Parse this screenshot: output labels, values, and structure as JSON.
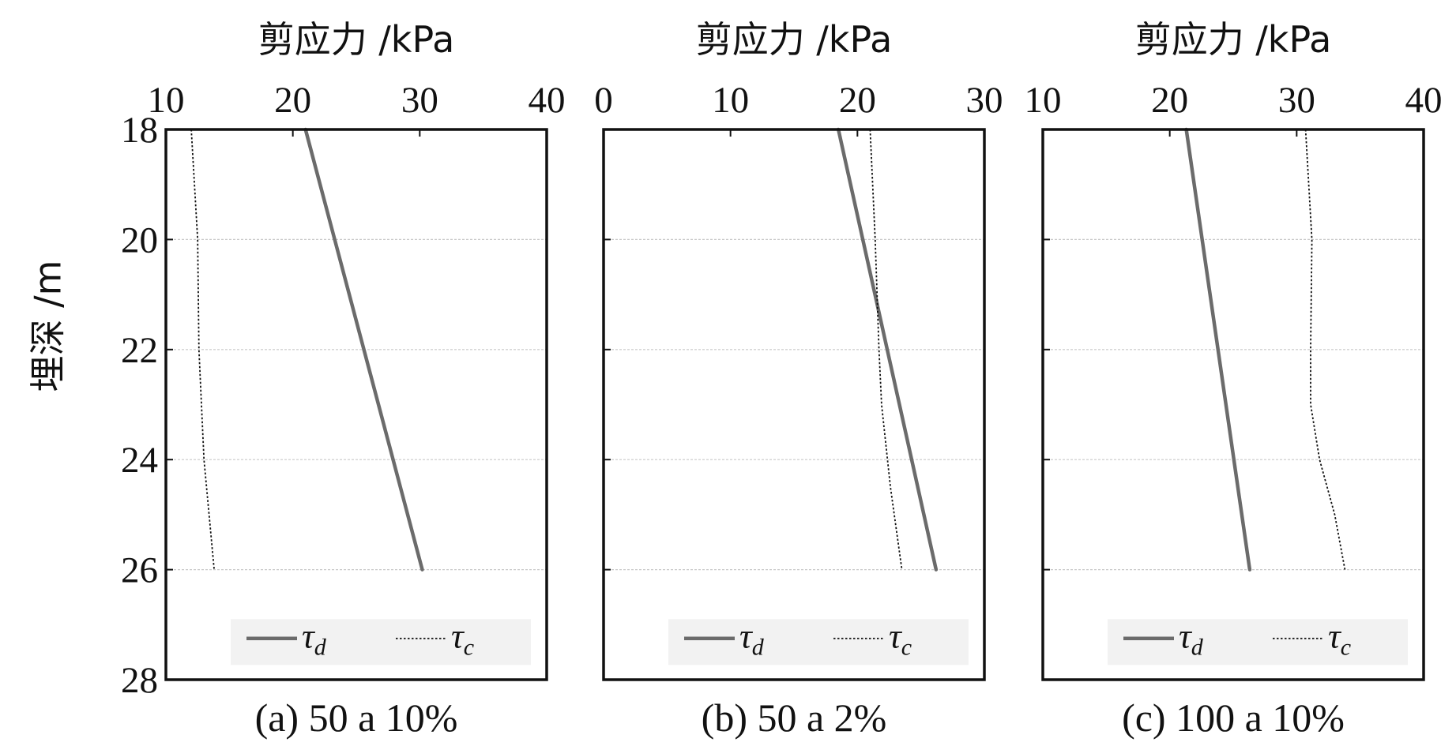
{
  "figure": {
    "ylabel": "埋深 /m",
    "colors": {
      "tau_d": "#6b6b6b",
      "tau_c": "#111111",
      "grid": "#c8c8c8",
      "legend_bg": "#f2f2f2"
    }
  },
  "chart_data": [
    {
      "type": "line",
      "title": "剪应力 /kPa",
      "caption": "(a) 50 a 10%",
      "xlim": [
        10,
        40
      ],
      "xticks": [
        10,
        20,
        30,
        40
      ],
      "xtick_labels": [
        "10",
        "20",
        "30",
        "40"
      ],
      "ylim": [
        18,
        28
      ],
      "yticks": [
        18,
        20,
        22,
        24,
        26,
        28
      ],
      "ytick_labels": [
        "18",
        "20",
        "22",
        "24",
        "26",
        "28"
      ],
      "grid_y": [
        20,
        22,
        24,
        26
      ],
      "legend_position": "bottom",
      "series": [
        {
          "name": "τd",
          "legend_main": "τ",
          "legend_sub": "d",
          "style": "solid",
          "x": [
            21.0,
            30.2
          ],
          "y": [
            18,
            26
          ]
        },
        {
          "name": "τc",
          "legend_main": "τ",
          "legend_sub": "c",
          "style": "dotted",
          "x": [
            12.0,
            12.5,
            12.6,
            13.0,
            13.8
          ],
          "y": [
            18,
            20,
            22,
            24,
            26
          ]
        }
      ]
    },
    {
      "type": "line",
      "title": "剪应力 /kPa",
      "caption": "(b) 50 a 2%",
      "xlim": [
        0,
        30
      ],
      "xticks": [
        0,
        10,
        20,
        30
      ],
      "xtick_labels": [
        "0",
        "10",
        "20",
        "30"
      ],
      "ylim": [
        18,
        28
      ],
      "yticks": [
        18,
        20,
        22,
        24,
        26,
        28
      ],
      "ytick_labels": [],
      "grid_y": [
        20,
        22,
        24,
        26
      ],
      "legend_position": "bottom",
      "series": [
        {
          "name": "τd",
          "legend_main": "τ",
          "legend_sub": "d",
          "style": "solid",
          "x": [
            18.5,
            26.2
          ],
          "y": [
            18,
            26
          ]
        },
        {
          "name": "τc",
          "legend_main": "τ",
          "legend_sub": "c",
          "style": "dotted",
          "x": [
            21.0,
            21.4,
            21.7,
            21.9,
            22.6,
            23.5
          ],
          "y": [
            18,
            20,
            22,
            23,
            24.5,
            26
          ]
        }
      ]
    },
    {
      "type": "line",
      "title": "剪应力 /kPa",
      "caption": "(c) 100 a 10%",
      "xlim": [
        10,
        40
      ],
      "xticks": [
        10,
        20,
        30,
        40
      ],
      "xtick_labels": [
        "10",
        "20",
        "30",
        "40"
      ],
      "ylim": [
        18,
        28
      ],
      "yticks": [
        18,
        20,
        22,
        24,
        26,
        28
      ],
      "ytick_labels": [],
      "grid_y": [
        20,
        22,
        24,
        26
      ],
      "legend_position": "bottom",
      "series": [
        {
          "name": "τd",
          "legend_main": "τ",
          "legend_sub": "d",
          "style": "solid",
          "x": [
            21.3,
            26.3
          ],
          "y": [
            18,
            26
          ]
        },
        {
          "name": "τc",
          "legend_main": "τ",
          "legend_sub": "c",
          "style": "dotted",
          "x": [
            30.7,
            31.2,
            31.1,
            31.1,
            31.8,
            33.0,
            33.8
          ],
          "y": [
            18,
            20,
            22,
            23,
            24,
            25,
            26
          ]
        }
      ]
    }
  ]
}
